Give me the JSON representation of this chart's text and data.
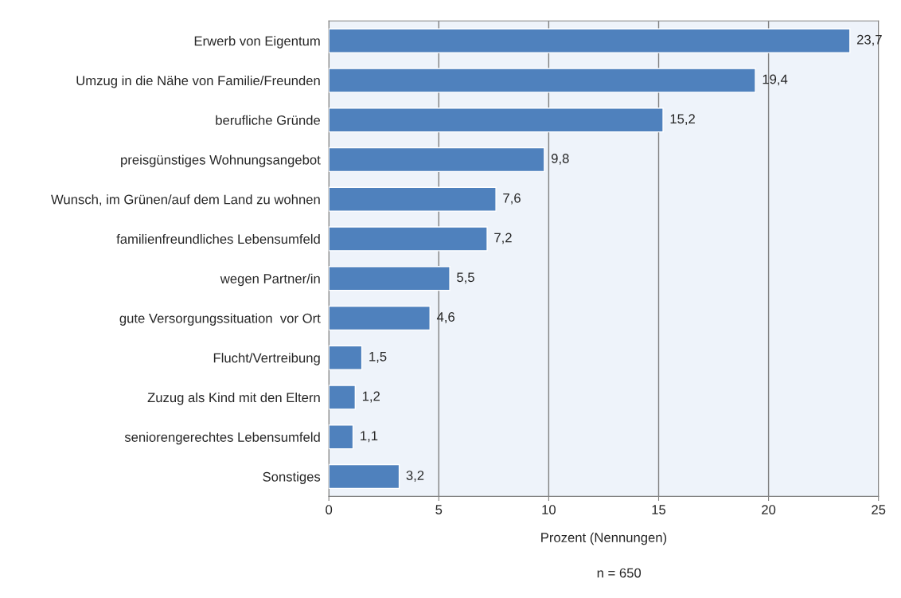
{
  "chart_data": {
    "type": "bar",
    "orientation": "horizontal",
    "categories": [
      "Erwerb von Eigentum",
      "Umzug in die Nähe von Familie/Freunden",
      "berufliche Gründe",
      "preisgünstiges Wohnungsangebot",
      "Wunsch, im Grünen/auf dem Land zu wohnen",
      "familienfreundliches Lebensumfeld",
      "wegen Partner/in",
      "gute Versorgungssituation  vor Ort",
      "Flucht/Vertreibung",
      "Zuzug als Kind mit den Eltern",
      "seniorengerechtes Lebensumfeld",
      "Sonstiges"
    ],
    "values": [
      23.7,
      19.4,
      15.2,
      9.8,
      7.6,
      7.2,
      5.5,
      4.6,
      1.5,
      1.2,
      1.1,
      3.2
    ],
    "value_labels": [
      "23,7",
      "19,4",
      "15,2",
      "9,8",
      "7,6",
      "7,2",
      "5,5",
      "4,6",
      "1,5",
      "1,2",
      "1,1",
      "3,2"
    ],
    "color": "#4f81bd",
    "xlim": [
      0,
      25
    ],
    "xticks": [
      0,
      5,
      10,
      15,
      20,
      25
    ],
    "xlabel": "Prozent (Nennungen)",
    "annotations": [
      "n = 650"
    ],
    "grid": "x",
    "legend": false
  }
}
